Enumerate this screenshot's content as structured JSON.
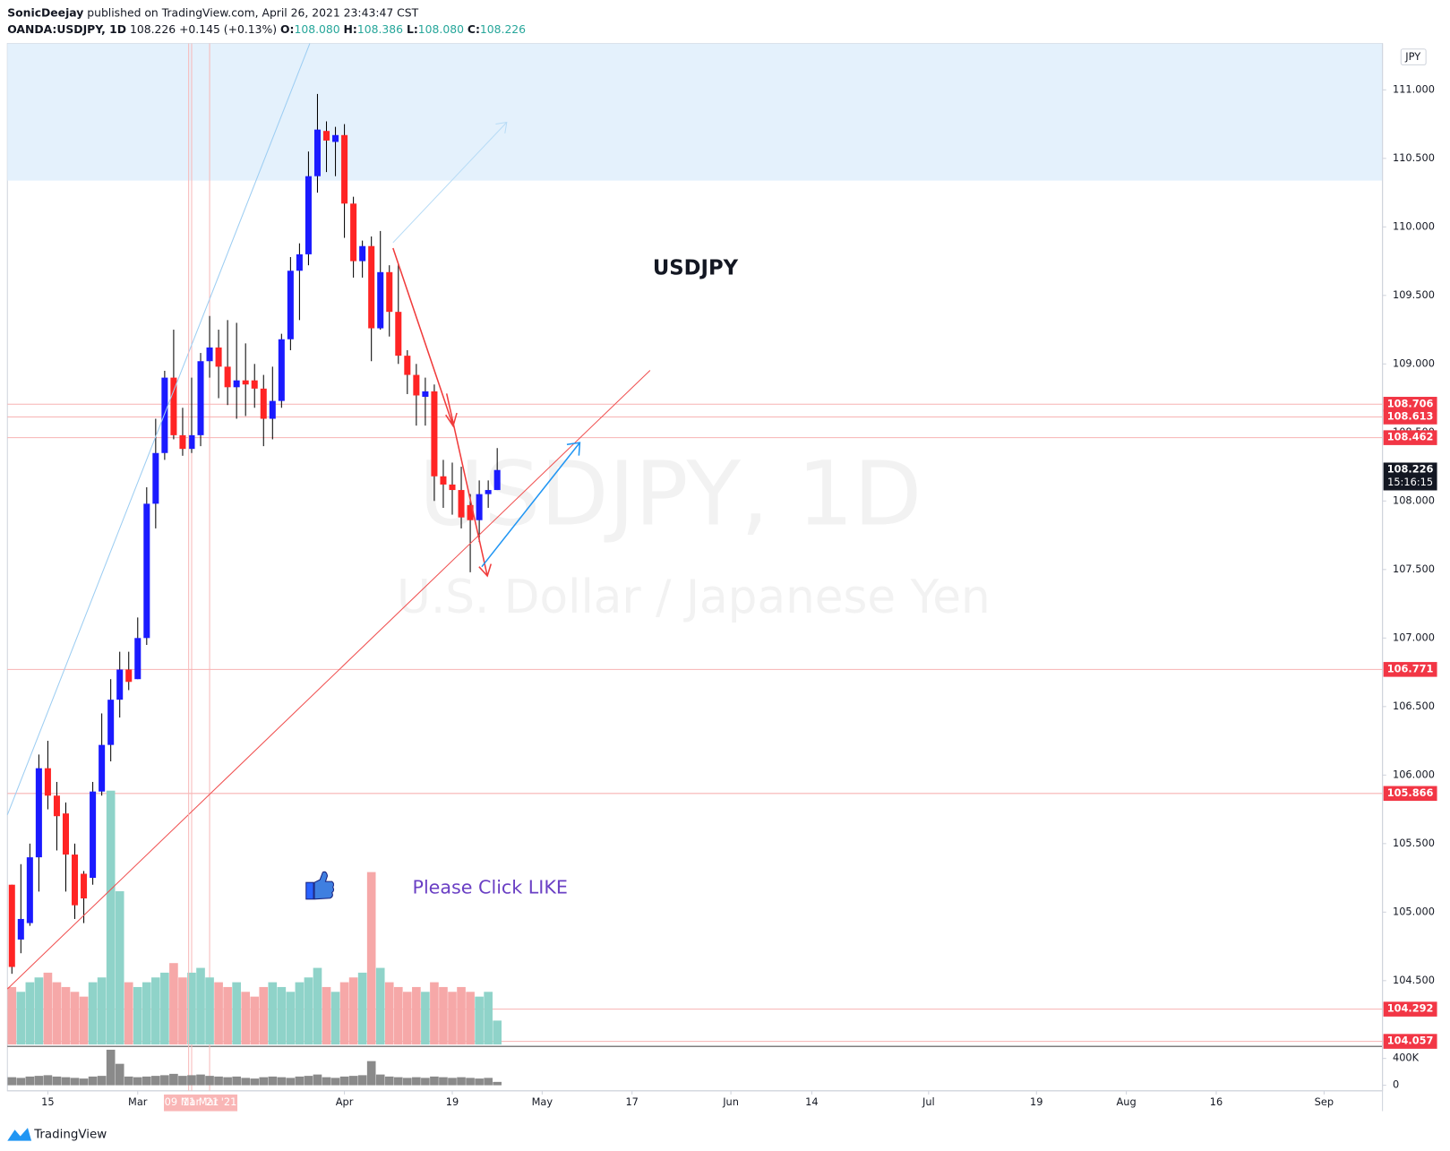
{
  "header": {
    "author": "SonicDeejay",
    "published": "published on TradingView.com, April 26, 2021 23:43:47 CST",
    "symbol": "OANDA:USDJPY, 1D",
    "last": "108.226",
    "change": "+0.145 (+0.13%)",
    "ohlc": [
      {
        "key": "O:",
        "text": "108.080"
      },
      {
        "key": "H:",
        "text": "108.386"
      },
      {
        "key": "L:",
        "text": "108.080"
      },
      {
        "key": "C:",
        "text": "108.226"
      }
    ]
  },
  "chart_data": {
    "type": "candlestick",
    "title": "USDJPY",
    "watermark_symbol": "USDJPY, 1D",
    "watermark_description": "U.S. Dollar / Japanese Yen",
    "annotation": "Please Click LIKE",
    "currency": "JPY",
    "up_color": "#1a1aff",
    "down_color": "#ff2424",
    "x": [
      "2021-02-09",
      "2021-02-10",
      "2021-02-11",
      "2021-02-12",
      "2021-02-15",
      "2021-02-16",
      "2021-02-17",
      "2021-02-18",
      "2021-02-19",
      "2021-02-22",
      "2021-02-23",
      "2021-02-24",
      "2021-02-25",
      "2021-02-26",
      "2021-03-01",
      "2021-03-02",
      "2021-03-03",
      "2021-03-04",
      "2021-03-05",
      "2021-03-08",
      "2021-03-09",
      "2021-03-10",
      "2021-03-11",
      "2021-03-12",
      "2021-03-15",
      "2021-03-16",
      "2021-03-17",
      "2021-03-18",
      "2021-03-19",
      "2021-03-22",
      "2021-03-23",
      "2021-03-24",
      "2021-03-25",
      "2021-03-26",
      "2021-03-29",
      "2021-03-30",
      "2021-03-31",
      "2021-04-01",
      "2021-04-02",
      "2021-04-05",
      "2021-04-06",
      "2021-04-07",
      "2021-04-08",
      "2021-04-09",
      "2021-04-12",
      "2021-04-13",
      "2021-04-14",
      "2021-04-15",
      "2021-04-16",
      "2021-04-19",
      "2021-04-20",
      "2021-04-21",
      "2021-04-22",
      "2021-04-23",
      "2021-04-26"
    ],
    "open": [
      105.2,
      104.8,
      104.92,
      105.4,
      106.05,
      105.85,
      105.72,
      105.42,
      105.28,
      105.25,
      105.88,
      106.22,
      106.55,
      106.77,
      106.7,
      107.0,
      107.98,
      108.35,
      108.9,
      108.48,
      108.38,
      108.48,
      109.02,
      109.12,
      108.98,
      108.83,
      108.88,
      108.88,
      108.82,
      108.6,
      108.73,
      109.18,
      109.68,
      109.8,
      110.37,
      110.7,
      110.62,
      110.67,
      110.17,
      109.75,
      109.86,
      109.26,
      109.67,
      109.38,
      109.06,
      108.92,
      108.76,
      108.8,
      108.18,
      108.12,
      108.08,
      107.97,
      107.86,
      108.05,
      108.08
    ],
    "high": [
      105.2,
      105.35,
      105.5,
      106.15,
      106.25,
      105.95,
      105.8,
      105.5,
      105.3,
      105.95,
      106.45,
      106.7,
      106.9,
      106.9,
      107.15,
      108.1,
      108.6,
      108.95,
      109.25,
      108.68,
      108.9,
      109.08,
      109.35,
      109.25,
      109.32,
      109.3,
      109.15,
      109.0,
      108.92,
      108.98,
      109.22,
      109.78,
      109.88,
      110.55,
      110.97,
      110.77,
      110.73,
      110.75,
      110.22,
      109.9,
      109.93,
      109.97,
      109.72,
      109.73,
      109.1,
      109.0,
      108.9,
      108.85,
      108.3,
      108.28,
      108.25,
      108.05,
      108.15,
      108.15,
      108.386
    ],
    "low": [
      104.55,
      104.7,
      104.9,
      105.15,
      105.75,
      105.45,
      105.15,
      104.95,
      104.92,
      105.2,
      105.85,
      106.1,
      106.42,
      106.62,
      106.7,
      106.95,
      107.8,
      108.3,
      108.45,
      108.33,
      108.35,
      108.4,
      108.9,
      108.75,
      108.7,
      108.6,
      108.62,
      108.68,
      108.4,
      108.45,
      108.68,
      109.1,
      109.32,
      109.72,
      110.25,
      110.4,
      110.37,
      109.92,
      109.63,
      109.63,
      109.02,
      109.25,
      109.2,
      109.0,
      108.78,
      108.55,
      108.55,
      108.0,
      107.95,
      107.9,
      107.8,
      107.48,
      107.7,
      107.95,
      108.08
    ],
    "close": [
      104.6,
      104.95,
      105.4,
      106.05,
      105.85,
      105.7,
      105.42,
      105.05,
      105.1,
      105.88,
      106.22,
      106.55,
      106.77,
      106.68,
      107.0,
      107.98,
      108.35,
      108.9,
      108.48,
      108.38,
      108.48,
      109.02,
      109.12,
      108.98,
      108.83,
      108.88,
      108.85,
      108.82,
      108.6,
      108.73,
      109.18,
      109.68,
      109.8,
      110.37,
      110.71,
      110.63,
      110.67,
      110.17,
      109.75,
      109.86,
      109.26,
      109.67,
      109.38,
      109.06,
      108.92,
      108.77,
      108.8,
      108.18,
      108.12,
      108.08,
      107.88,
      107.86,
      108.05,
      108.08,
      108.226
    ],
    "volume": [
      120000,
      110000,
      130000,
      140000,
      150000,
      130000,
      120000,
      110000,
      100000,
      130000,
      140000,
      530000,
      320000,
      130000,
      120000,
      130000,
      140000,
      150000,
      170000,
      140000,
      150000,
      160000,
      140000,
      130000,
      120000,
      130000,
      110000,
      100000,
      120000,
      130000,
      120000,
      110000,
      130000,
      140000,
      160000,
      120000,
      110000,
      130000,
      140000,
      150000,
      360000,
      160000,
      130000,
      120000,
      110000,
      120000,
      110000,
      130000,
      120000,
      110000,
      120000,
      110000,
      100000,
      110000,
      50000
    ],
    "xlim": [
      "2021-02-09",
      "2021-09-09"
    ],
    "xticks": [
      {
        "value": "2021-02-15",
        "label": "15"
      },
      {
        "value": "2021-03-01",
        "label": "Mar"
      },
      {
        "value": "2021-04-01",
        "label": "Apr"
      },
      {
        "value": "2021-04-19",
        "label": "19"
      },
      {
        "value": "2021-05-03",
        "label": "May"
      },
      {
        "value": "2021-05-17",
        "label": "17"
      },
      {
        "value": "2021-06-01",
        "label": "Jun"
      },
      {
        "value": "2021-06-14",
        "label": "14"
      },
      {
        "value": "2021-07-01",
        "label": "Jul"
      },
      {
        "value": "2021-07-19",
        "label": "19"
      },
      {
        "value": "2021-08-02",
        "label": "Aug"
      },
      {
        "value": "2021-08-16",
        "label": "16"
      },
      {
        "value": "2021-09-01",
        "label": "Sep"
      }
    ],
    "vertical_markers": [
      {
        "value": "2021-03-09",
        "label": "09 Mar '21"
      },
      {
        "value": "2021-03-11",
        "label": "11 Mar '21"
      }
    ],
    "ylim": [
      104.034,
      111.338
    ],
    "yticks": [
      {
        "value": 104.5,
        "label": "104.500"
      },
      {
        "value": 105,
        "label": "105.000"
      },
      {
        "value": 105.5,
        "label": "105.500"
      },
      {
        "value": 106,
        "label": "106.000"
      },
      {
        "value": 106.5,
        "label": "106.500"
      },
      {
        "value": 107,
        "label": "107.000"
      },
      {
        "value": 107.5,
        "label": "107.500"
      },
      {
        "value": 108,
        "label": "108.000"
      },
      {
        "value": 108.5,
        "label": "108.500"
      },
      {
        "value": 109,
        "label": "109.000"
      },
      {
        "value": 109.5,
        "label": "109.500"
      },
      {
        "value": 110,
        "label": "110.000"
      },
      {
        "value": 110.5,
        "label": "110.500"
      },
      {
        "value": 111,
        "label": "111.000"
      }
    ],
    "price_levels": [
      {
        "value": 108.706,
        "label": "108.706"
      },
      {
        "value": 108.613,
        "label": "108.613"
      },
      {
        "value": 108.462,
        "label": "108.462"
      },
      {
        "value": 106.771,
        "label": "106.771"
      },
      {
        "value": 105.866,
        "label": "105.866"
      },
      {
        "value": 104.292,
        "label": "104.292"
      },
      {
        "value": 104.057,
        "label": "104.057"
      }
    ],
    "level_color": "#f23645",
    "last_price": {
      "value": 108.226,
      "label": "108.226",
      "countdown": "15:16:15"
    },
    "volume_ylim": [
      0,
      580000
    ],
    "volume_yticks": [
      {
        "value": 0,
        "label": "0"
      },
      {
        "value": 400000,
        "label": "400K"
      }
    ]
  },
  "footer": {
    "brand": "TradingView"
  }
}
